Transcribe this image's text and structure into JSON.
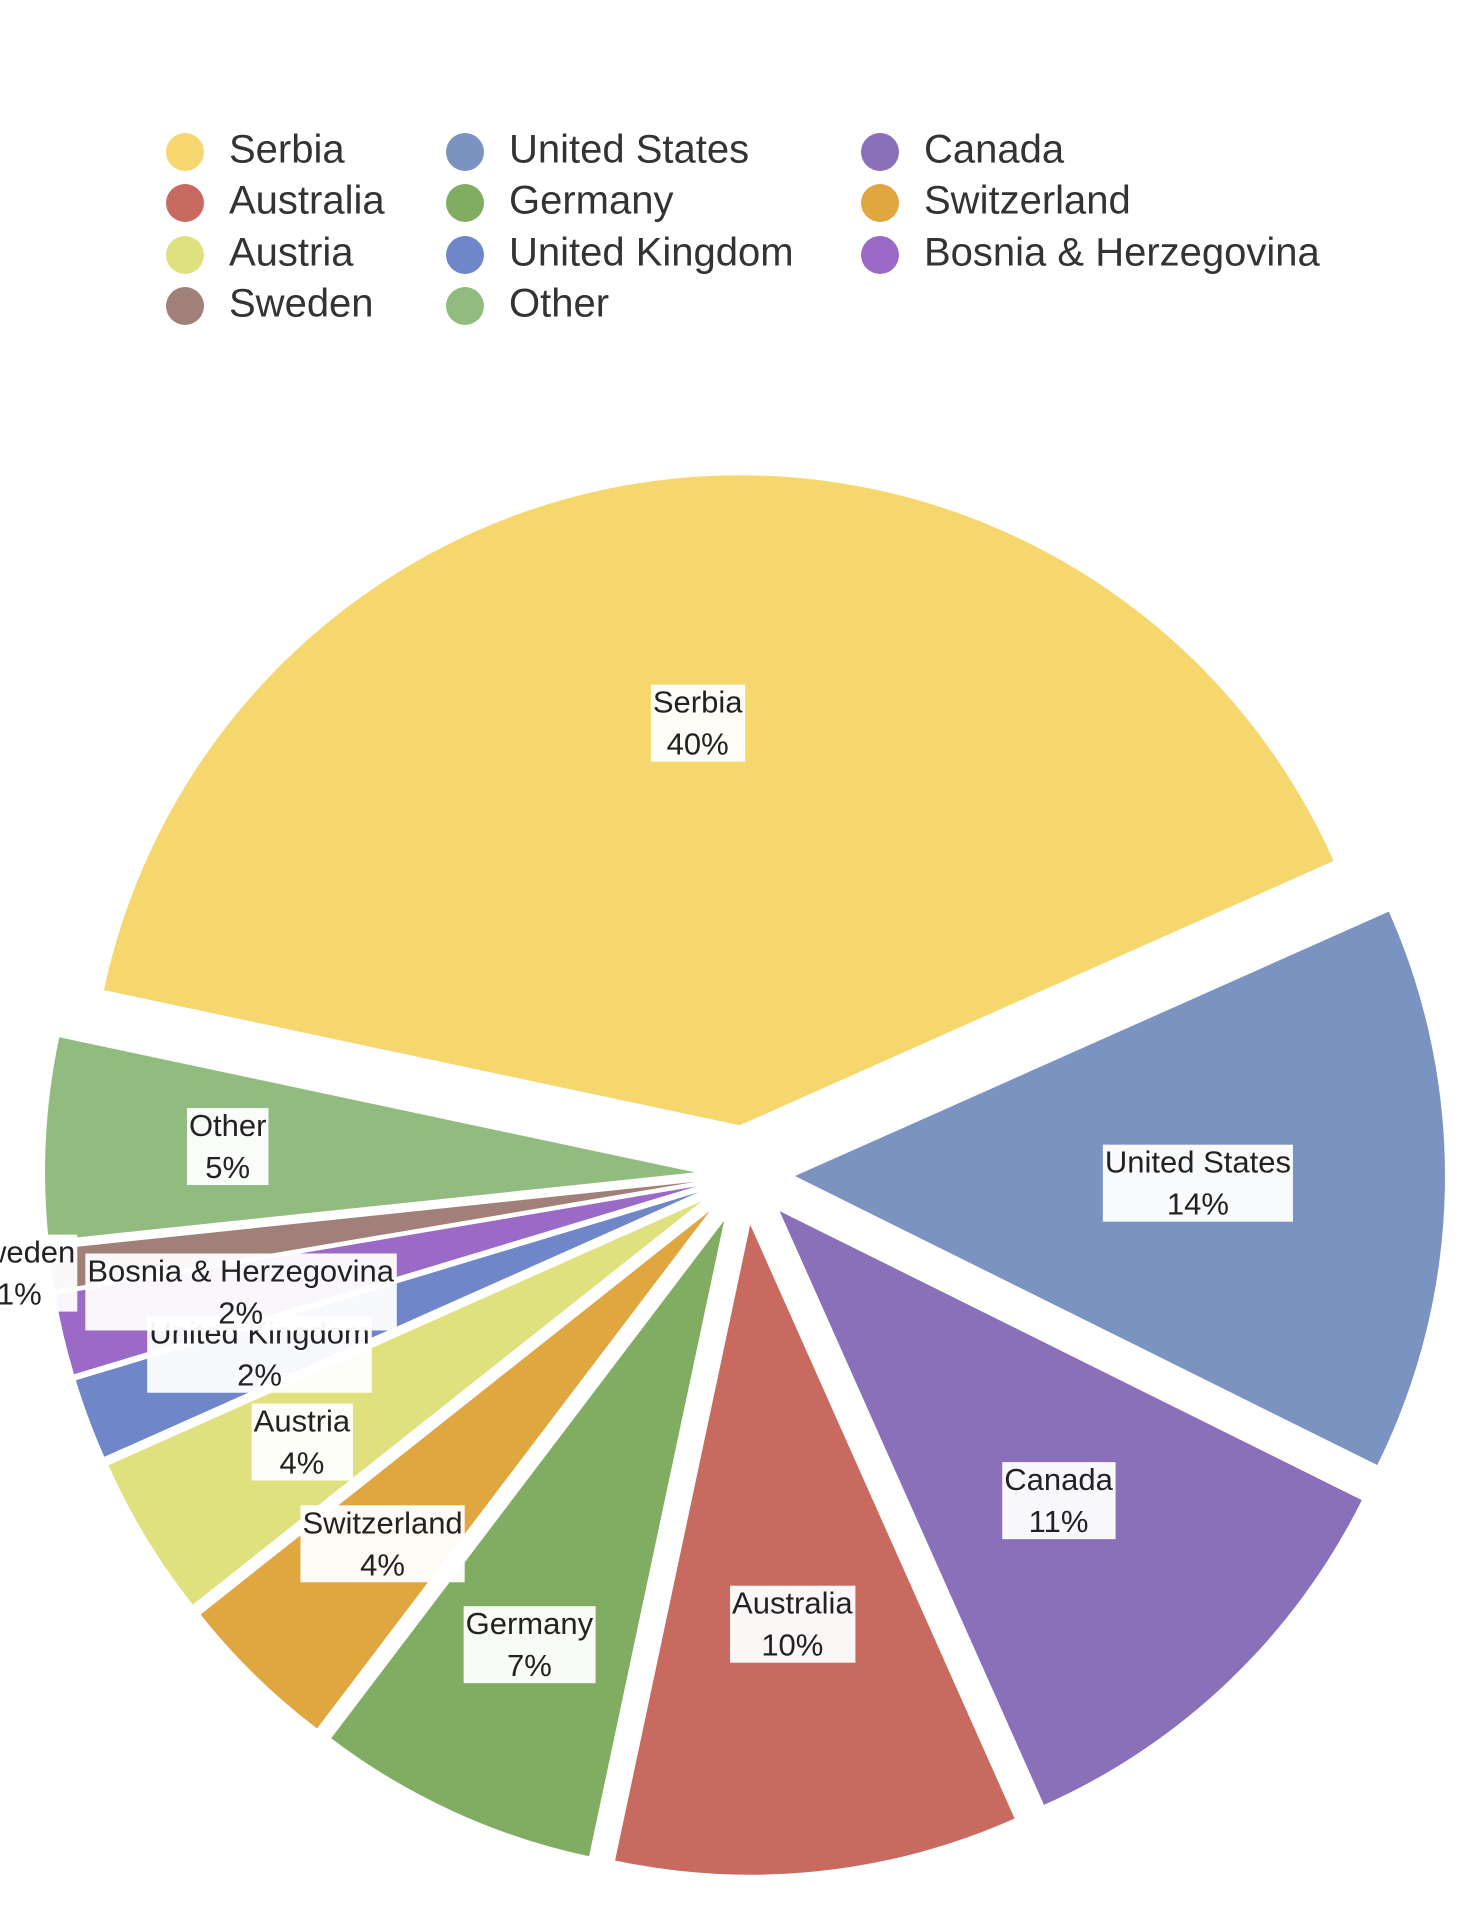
{
  "chart_data": {
    "type": "pie",
    "categories": [
      "Serbia",
      "United States",
      "Canada",
      "Australia",
      "Germany",
      "Switzerland",
      "Austria",
      "United Kingdom",
      "Bosnia & Herzegovina",
      "Sweden",
      "Other"
    ],
    "values": [
      40,
      14,
      11,
      10,
      7,
      4,
      4,
      2,
      2,
      1,
      5
    ],
    "value_labels": [
      "40%",
      "14%",
      "11%",
      "10%",
      "7%",
      "4%",
      "4%",
      "2%",
      "2%",
      "1%",
      "5%"
    ],
    "colors": [
      "#f5d76e",
      "#7b93c0",
      "#8a70b8",
      "#c86a60",
      "#80ad62",
      "#e0a640",
      "#dfe07e",
      "#6f86c8",
      "#9b6ac6",
      "#a08078",
      "#92bb80"
    ],
    "legend": "top"
  }
}
